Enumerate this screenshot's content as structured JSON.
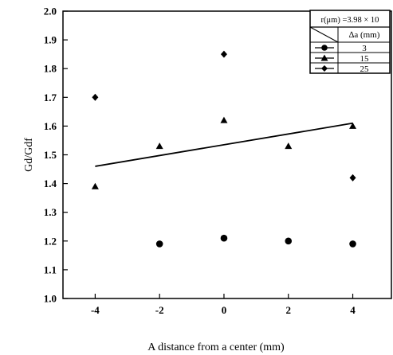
{
  "chart_data": {
    "type": "scatter",
    "xlabel": "A distance from a center (mm)",
    "ylabel": "Gd/Gdf",
    "xlim": [
      -5.0,
      5.2
    ],
    "ylim": [
      1.0,
      2.0
    ],
    "x_ticks": [
      -4,
      -2,
      0,
      2,
      4
    ],
    "x_tick_labels": [
      "-4",
      "-2",
      "0",
      "2",
      "4"
    ],
    "y_ticks": [
      1.0,
      1.1,
      1.2,
      1.3,
      1.4,
      1.5,
      1.6,
      1.7,
      1.8,
      1.9,
      2.0
    ],
    "y_tick_labels": [
      "1.0",
      "1.1",
      "1.2",
      "1.3",
      "1.4",
      "1.5",
      "1.6",
      "1.7",
      "1.8",
      "1.9",
      "2.0"
    ],
    "grid": false,
    "legend": {
      "placement": "top-right",
      "header": "r(μm) =3.98 × 10",
      "column_label": "∆a (mm)"
    },
    "series": [
      {
        "name": "3",
        "marker": "circle",
        "x": [
          -2,
          0,
          2,
          4
        ],
        "y": [
          1.19,
          1.21,
          1.2,
          1.19
        ]
      },
      {
        "name": "15",
        "marker": "triangle",
        "x": [
          -4,
          -2,
          0,
          2,
          4
        ],
        "y": [
          1.39,
          1.53,
          1.62,
          1.53,
          1.6
        ]
      },
      {
        "name": "25",
        "marker": "diamond",
        "x": [
          -4,
          0,
          4
        ],
        "y": [
          1.7,
          1.85,
          1.42
        ]
      }
    ],
    "trendline": {
      "x": [
        -4,
        4
      ],
      "y": [
        1.46,
        1.61
      ]
    }
  }
}
